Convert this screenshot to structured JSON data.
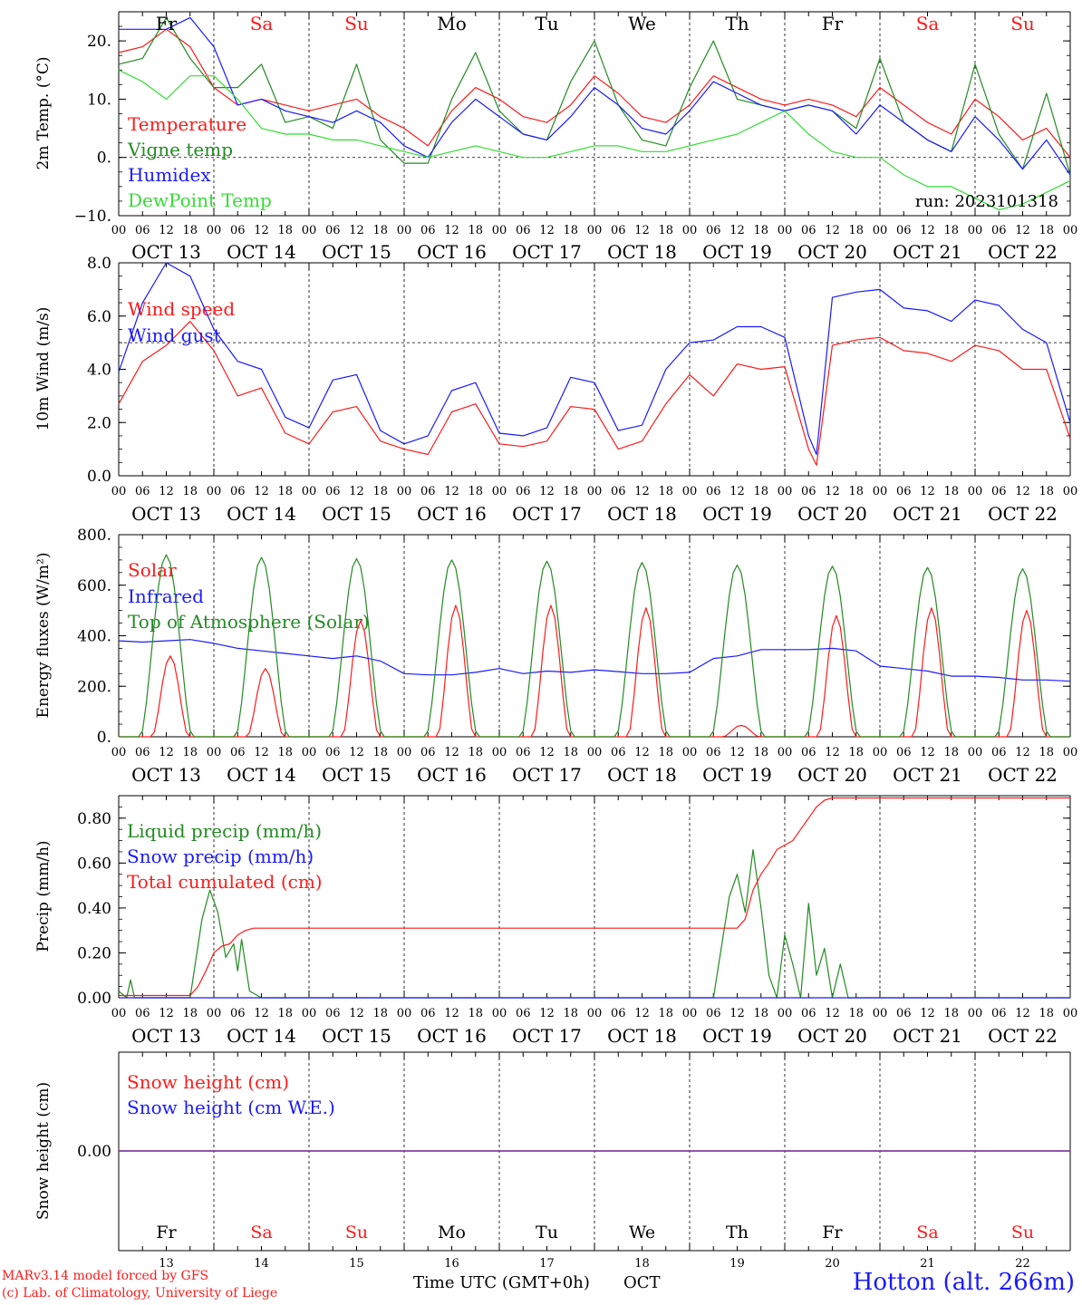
{
  "colors": {
    "red": "#ff1a1a",
    "green": "#228b22",
    "blue": "#1a1aff",
    "lightgreen": "#33dd33",
    "purple": "#7f3f9f",
    "axis": "#000000"
  },
  "days": {
    "names": [
      "Fr",
      "Sa",
      "Su",
      "Mo",
      "Tu",
      "We",
      "Th",
      "Fr",
      "Sa",
      "Su"
    ],
    "weekend": [
      false,
      true,
      true,
      false,
      false,
      false,
      false,
      false,
      true,
      true
    ],
    "dates": [
      "OCT 13",
      "OCT 14",
      "OCT 15",
      "OCT 16",
      "OCT 17",
      "OCT 18",
      "OCT 19",
      "OCT 20",
      "OCT 21",
      "OCT 22"
    ],
    "numbers": [
      "13",
      "14",
      "15",
      "16",
      "17",
      "18",
      "19",
      "20",
      "21",
      "22"
    ],
    "hour_ticks": [
      "00",
      "06",
      "12",
      "18"
    ],
    "final_tick": "00"
  },
  "footer": {
    "model": "MARv3.14 model forced by GFS",
    "copyright": "(c) Lab. of Climatology, University of Liege",
    "time_axis": "Time UTC (GMT+0h)",
    "month": "OCT",
    "station": "Hotton (alt. 266m)"
  },
  "chart_data": [
    {
      "type": "line",
      "ylabel": "2m Temp. (°C)",
      "ylim": [
        -10,
        25
      ],
      "yticks": [
        -10,
        0,
        10,
        20
      ],
      "ytick_labels": [
        "−10.",
        "0.",
        "10.",
        "20."
      ],
      "reference_line": 0,
      "annotation": "run: 2023101318",
      "x_unit": "hours since 2023-10-13 00 UTC",
      "series": [
        {
          "name": "Temperature",
          "color": "red",
          "x": [
            0,
            6,
            12,
            18,
            24,
            30,
            36,
            42,
            48,
            54,
            60,
            66,
            72,
            78,
            84,
            90,
            96,
            102,
            108,
            114,
            120,
            126,
            132,
            138,
            144,
            150,
            156,
            162,
            168,
            174,
            180,
            186,
            192,
            198,
            204,
            210,
            216,
            222,
            228,
            234,
            240
          ],
          "y": [
            18,
            19,
            22,
            19,
            12,
            9,
            10,
            9,
            8,
            9,
            10,
            7,
            5,
            2,
            8,
            12,
            10,
            7,
            6,
            9,
            14,
            11,
            7,
            6,
            9,
            14,
            12,
            10,
            9,
            10,
            9,
            7,
            12,
            9,
            6,
            4,
            10,
            7,
            3,
            5,
            0
          ]
        },
        {
          "name": "Vigne temp",
          "color": "green",
          "x": [
            0,
            6,
            12,
            18,
            24,
            30,
            36,
            42,
            48,
            54,
            60,
            66,
            72,
            78,
            84,
            90,
            96,
            102,
            108,
            114,
            120,
            126,
            132,
            138,
            144,
            150,
            156,
            162,
            168,
            174,
            180,
            186,
            192,
            198,
            204,
            210,
            216,
            222,
            228,
            234,
            240
          ],
          "y": [
            16,
            17,
            24,
            17,
            12,
            12,
            16,
            6,
            7,
            5,
            16,
            3,
            -1,
            -1,
            10,
            18,
            8,
            4,
            3,
            13,
            20,
            9,
            3,
            2,
            12,
            20,
            10,
            9,
            8,
            9,
            8,
            5,
            17,
            6,
            3,
            1,
            16,
            4,
            -2,
            11,
            -3
          ]
        },
        {
          "name": "Humidex",
          "color": "blue",
          "x": [
            0,
            6,
            12,
            18,
            24,
            30,
            36,
            42,
            48,
            54,
            60,
            66,
            72,
            78,
            84,
            90,
            96,
            102,
            108,
            114,
            120,
            126,
            132,
            138,
            144,
            150,
            156,
            162,
            168,
            174,
            180,
            186,
            192,
            198,
            204,
            210,
            216,
            222,
            228,
            234,
            240
          ],
          "y": [
            22,
            22,
            22,
            24,
            19,
            9,
            10,
            8,
            7,
            6,
            8,
            6,
            2,
            0,
            6,
            10,
            7,
            4,
            3,
            7,
            12,
            9,
            5,
            4,
            8,
            13,
            11,
            9,
            8,
            9,
            8,
            4,
            9,
            6,
            3,
            1,
            7,
            3,
            -2,
            3,
            -3
          ]
        },
        {
          "name": "DewPoint Temp",
          "color": "lightgreen",
          "x": [
            0,
            6,
            12,
            18,
            24,
            30,
            36,
            42,
            48,
            54,
            60,
            66,
            72,
            78,
            84,
            90,
            96,
            102,
            108,
            114,
            120,
            126,
            132,
            138,
            144,
            150,
            156,
            162,
            168,
            174,
            180,
            186,
            192,
            198,
            204,
            210,
            216,
            222,
            228,
            234,
            240
          ],
          "y": [
            15,
            13,
            10,
            14,
            14,
            10,
            5,
            4,
            4,
            3,
            3,
            2,
            1,
            0,
            1,
            2,
            1,
            0,
            0,
            1,
            2,
            2,
            1,
            1,
            2,
            3,
            4,
            6,
            8,
            4,
            1,
            0,
            0,
            -3,
            -5,
            -5,
            -7,
            -9,
            -8,
            -6,
            -4
          ]
        }
      ]
    },
    {
      "type": "line",
      "ylabel": "10m Wind (m/s)",
      "ylim": [
        0,
        8
      ],
      "yticks": [
        0,
        2,
        4,
        6,
        8
      ],
      "ytick_labels": [
        "0.0",
        "2.0",
        "4.0",
        "6.0",
        "8.0"
      ],
      "reference_line": 5,
      "x_unit": "hours since 2023-10-13 00 UTC",
      "series": [
        {
          "name": "Wind speed",
          "color": "red",
          "x": [
            0,
            6,
            12,
            18,
            24,
            30,
            36,
            42,
            48,
            54,
            60,
            66,
            72,
            78,
            84,
            90,
            96,
            102,
            108,
            114,
            120,
            126,
            132,
            138,
            144,
            150,
            156,
            162,
            168,
            174,
            176,
            180,
            186,
            192,
            198,
            204,
            210,
            216,
            222,
            228,
            234,
            240
          ],
          "y": [
            2.7,
            4.3,
            4.9,
            5.8,
            4.7,
            3.0,
            3.3,
            1.6,
            1.2,
            2.4,
            2.6,
            1.3,
            1.0,
            0.8,
            2.4,
            2.7,
            1.2,
            1.1,
            1.3,
            2.6,
            2.5,
            1.0,
            1.3,
            2.7,
            3.8,
            3.0,
            4.2,
            4.0,
            4.1,
            1.0,
            0.4,
            4.9,
            5.1,
            5.2,
            4.7,
            4.6,
            4.3,
            4.9,
            4.7,
            4.0,
            4.0,
            1.4
          ]
        },
        {
          "name": "Wind gust",
          "color": "blue",
          "x": [
            0,
            6,
            12,
            18,
            24,
            30,
            36,
            42,
            48,
            54,
            60,
            66,
            72,
            78,
            84,
            90,
            96,
            102,
            108,
            114,
            120,
            126,
            132,
            138,
            144,
            150,
            156,
            162,
            168,
            174,
            176,
            180,
            186,
            192,
            198,
            204,
            210,
            216,
            222,
            228,
            234,
            240
          ],
          "y": [
            3.9,
            6.5,
            8.0,
            7.5,
            5.5,
            4.3,
            4.0,
            2.2,
            1.8,
            3.6,
            3.8,
            1.7,
            1.2,
            1.5,
            3.2,
            3.5,
            1.6,
            1.5,
            1.8,
            3.7,
            3.5,
            1.7,
            1.9,
            4.0,
            5.0,
            5.1,
            5.6,
            5.6,
            5.2,
            1.5,
            0.8,
            6.7,
            6.9,
            7.0,
            6.3,
            6.2,
            5.8,
            6.6,
            6.4,
            5.5,
            5.0,
            2.0
          ]
        }
      ]
    },
    {
      "type": "line",
      "ylabel": "Energy fluxes (W/m²)",
      "ylim": [
        0,
        800
      ],
      "yticks": [
        0,
        200,
        400,
        600,
        800
      ],
      "ytick_labels": [
        "0.",
        "200.",
        "400.",
        "600.",
        "800."
      ],
      "x_unit": "hours since 2023-10-13 00 UTC",
      "series": [
        {
          "name": "Solar",
          "color": "red",
          "daily_peak": [
            320,
            270,
            460,
            520,
            520,
            510,
            45,
            480,
            510,
            500
          ],
          "peak_hour": 13
        },
        {
          "name": "Infrared",
          "color": "blue",
          "x": [
            0,
            6,
            12,
            18,
            24,
            30,
            36,
            42,
            48,
            54,
            60,
            66,
            72,
            78,
            84,
            90,
            96,
            102,
            108,
            114,
            120,
            126,
            132,
            138,
            144,
            150,
            156,
            162,
            168,
            174,
            180,
            186,
            192,
            198,
            204,
            210,
            216,
            222,
            228,
            234,
            240
          ],
          "y": [
            380,
            375,
            380,
            385,
            370,
            350,
            340,
            330,
            320,
            310,
            320,
            300,
            250,
            245,
            245,
            255,
            270,
            250,
            260,
            255,
            265,
            258,
            250,
            250,
            255,
            310,
            320,
            345,
            345,
            345,
            350,
            340,
            280,
            270,
            260,
            240,
            240,
            235,
            225,
            225,
            220
          ]
        },
        {
          "name": "Top of Atmosphere (Solar)",
          "color": "green",
          "daily_peak": [
            720,
            710,
            705,
            700,
            695,
            690,
            680,
            675,
            670,
            665
          ],
          "peak_hour": 12
        }
      ]
    },
    {
      "type": "line",
      "ylabel": "Precip (mm/h)",
      "ylim": [
        0,
        0.9
      ],
      "yticks": [
        0,
        0.2,
        0.4,
        0.6,
        0.8
      ],
      "ytick_labels": [
        "0.00",
        "0.20",
        "0.40",
        "0.60",
        "0.80"
      ],
      "x_unit": "hours since 2023-10-13 00 UTC",
      "series": [
        {
          "name": "Liquid precip (mm/h)",
          "color": "green",
          "x": [
            0,
            2,
            3,
            4,
            18,
            21,
            23,
            25,
            27,
            29,
            30,
            31,
            33,
            36,
            150,
            154,
            156,
            158,
            160,
            162,
            164,
            166,
            168,
            170,
            172,
            174,
            176,
            178,
            180,
            182,
            184,
            240
          ],
          "y": [
            0.03,
            0,
            0.08,
            0,
            0,
            0.35,
            0.48,
            0.38,
            0.18,
            0.24,
            0.12,
            0.26,
            0.03,
            0,
            0,
            0.45,
            0.55,
            0.38,
            0.66,
            0.4,
            0.1,
            0,
            0.28,
            0.15,
            0,
            0.42,
            0.1,
            0.22,
            0,
            0.15,
            0,
            0
          ]
        },
        {
          "name": "Snow precip (mm/h)",
          "color": "blue",
          "x": [
            0,
            240
          ],
          "y": [
            0,
            0
          ]
        },
        {
          "name": "Total cumulated (cm)",
          "color": "red",
          "x": [
            0,
            18,
            20,
            22,
            24,
            26,
            28,
            30,
            32,
            34,
            36,
            156,
            158,
            160,
            162,
            164,
            166,
            168,
            170,
            172,
            174,
            176,
            178,
            180,
            240
          ],
          "y": [
            0.01,
            0.01,
            0.05,
            0.12,
            0.2,
            0.23,
            0.24,
            0.28,
            0.3,
            0.31,
            0.31,
            0.31,
            0.35,
            0.48,
            0.55,
            0.6,
            0.66,
            0.68,
            0.7,
            0.75,
            0.8,
            0.85,
            0.88,
            0.89,
            0.89
          ]
        }
      ]
    },
    {
      "type": "line",
      "ylabel": "Snow height (cm)",
      "yticks": [
        0
      ],
      "ytick_labels": [
        "0.00"
      ],
      "x_unit": "hours since 2023-10-13 00 UTC",
      "series": [
        {
          "name": "Snow height (cm)",
          "color": "red",
          "x": [
            0,
            240
          ],
          "y": [
            0,
            0
          ]
        },
        {
          "name": "Snow height (cm W.E.)",
          "color": "blue",
          "x": [
            0,
            240
          ],
          "y": [
            0,
            0
          ]
        }
      ]
    }
  ]
}
